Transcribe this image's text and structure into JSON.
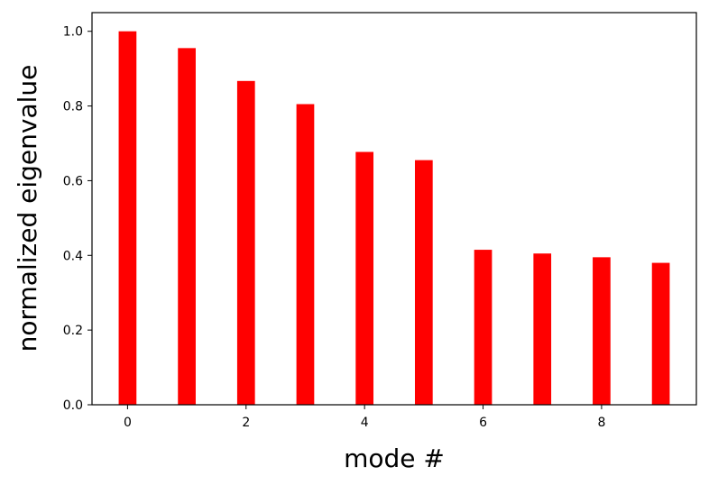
{
  "chart_data": {
    "type": "bar",
    "title": "",
    "xlabel": "mode #",
    "ylabel": "normalized eigenvalue",
    "x": [
      0,
      1,
      2,
      3,
      4,
      5,
      6,
      7,
      8,
      9
    ],
    "values": [
      1.0,
      0.955,
      0.867,
      0.805,
      0.677,
      0.655,
      0.415,
      0.405,
      0.395,
      0.38
    ],
    "bar_color": "#ff0000",
    "xlim": [
      -0.6,
      9.6
    ],
    "ylim": [
      0,
      1.05
    ],
    "xticks": [
      0,
      2,
      4,
      6,
      8
    ],
    "xtick_labels": [
      "0",
      "2",
      "4",
      "6",
      "8"
    ],
    "yticks": [
      0.0,
      0.2,
      0.4,
      0.6,
      0.8,
      1.0
    ],
    "ytick_labels": [
      "0.0",
      "0.2",
      "0.4",
      "0.6",
      "0.8",
      "1.0"
    ],
    "grid": false,
    "legend": "none"
  }
}
